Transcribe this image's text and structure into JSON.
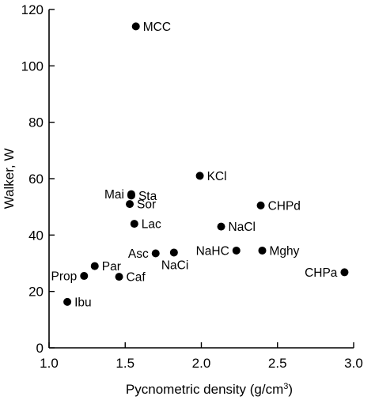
{
  "chart_data": {
    "type": "scatter",
    "title": "",
    "xlabel": "Pycnometric density (g/cm",
    "xlabel_superscript": "3",
    "xlabel_suffix": ")",
    "ylabel": "Walker, W",
    "xlim": [
      1.0,
      3.0
    ],
    "ylim": [
      0,
      120
    ],
    "xticks": [
      1.0,
      1.5,
      2.0,
      2.5,
      3.0
    ],
    "xtick_labels": [
      "1.0",
      "1.5",
      "2.0",
      "2.5",
      "3.0"
    ],
    "yticks": [
      0,
      20,
      40,
      60,
      80,
      100,
      120
    ],
    "ytick_labels": [
      "0",
      "20",
      "40",
      "60",
      "80",
      "100",
      "120"
    ],
    "grid": false,
    "legend": "none",
    "marker_color": "#000000",
    "points": [
      {
        "label": "MCC",
        "x": 1.57,
        "y": 114.0,
        "label_pos": "right"
      },
      {
        "label": "KCl",
        "x": 1.99,
        "y": 61.0,
        "label_pos": "right"
      },
      {
        "label": "Mai",
        "x": 1.54,
        "y": 54.5,
        "label_pos": "left"
      },
      {
        "label": "Sta",
        "x": 1.54,
        "y": 54.0,
        "label_pos": "right"
      },
      {
        "label": "Sor",
        "x": 1.53,
        "y": 51.0,
        "label_pos": "right"
      },
      {
        "label": "CHPd",
        "x": 2.39,
        "y": 50.5,
        "label_pos": "right"
      },
      {
        "label": "Lac",
        "x": 1.56,
        "y": 44.0,
        "label_pos": "right"
      },
      {
        "label": "NaCl",
        "x": 2.13,
        "y": 43.0,
        "label_pos": "right"
      },
      {
        "label": "Asc",
        "x": 1.7,
        "y": 33.5,
        "label_pos": "left"
      },
      {
        "label": "NaCi",
        "x": 1.82,
        "y": 33.8,
        "label_pos": "below"
      },
      {
        "label": "NaHC",
        "x": 2.23,
        "y": 34.5,
        "label_pos": "left"
      },
      {
        "label": "Mghy",
        "x": 2.4,
        "y": 34.5,
        "label_pos": "right"
      },
      {
        "label": "CHPa",
        "x": 2.94,
        "y": 26.8,
        "label_pos": "left"
      },
      {
        "label": "Par",
        "x": 1.3,
        "y": 29.0,
        "label_pos": "right"
      },
      {
        "label": "Prop",
        "x": 1.23,
        "y": 25.5,
        "label_pos": "left"
      },
      {
        "label": "Caf",
        "x": 1.46,
        "y": 25.2,
        "label_pos": "right"
      },
      {
        "label": "Ibu",
        "x": 1.12,
        "y": 16.3,
        "label_pos": "right"
      }
    ]
  }
}
